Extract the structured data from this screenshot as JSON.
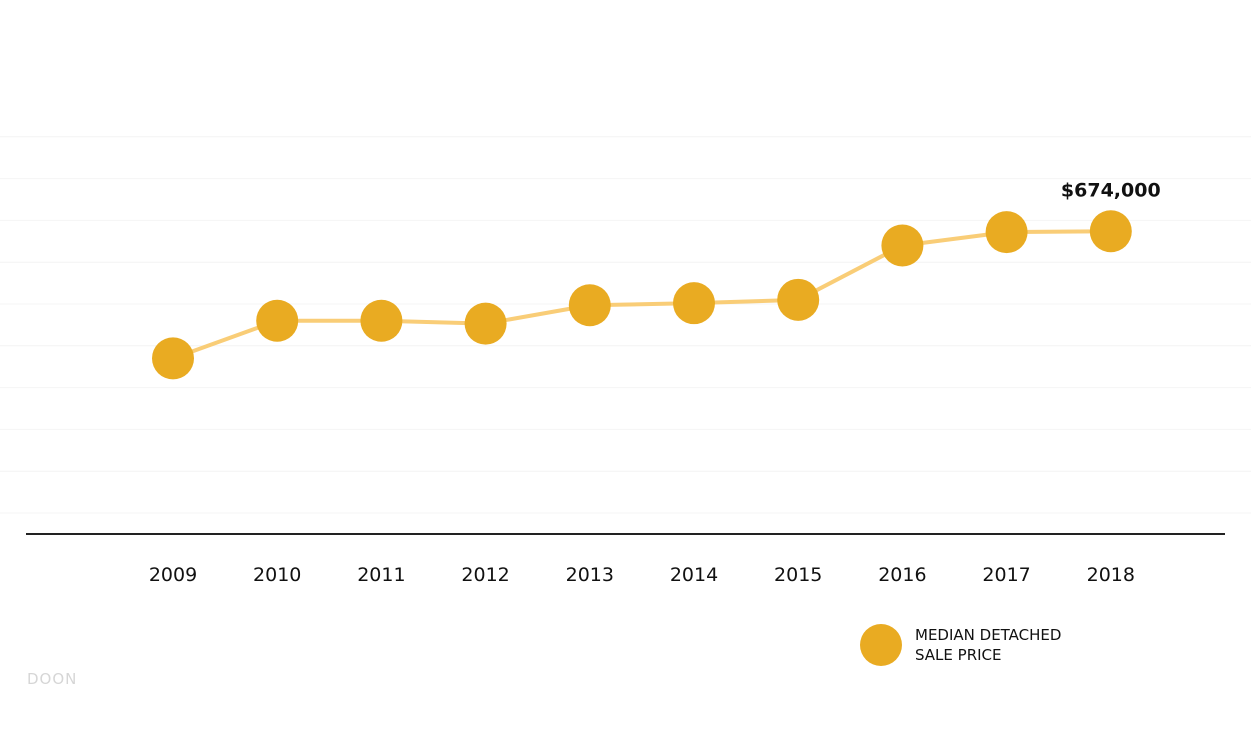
{
  "chart_data": {
    "type": "line",
    "x": [
      "2009",
      "2010",
      "2011",
      "2012",
      "2013",
      "2014",
      "2015",
      "2016",
      "2017",
      "2018"
    ],
    "series": [
      {
        "name": "MEDIAN DETACHED SALE PRICE",
        "values": [
          370000,
          460000,
          460000,
          453000,
          497000,
          502000,
          510000,
          640000,
          672000,
          674000
        ]
      }
    ],
    "annotations": [
      {
        "x": "2018",
        "text": "$674,000"
      }
    ],
    "ylim": [
      0,
      1000000
    ],
    "grid": true,
    "legend": "bottom-right",
    "colors": {
      "line": "#f9cd77",
      "marker": "#e9ab22",
      "grid": "#f4f4f4",
      "axis": "#222222"
    }
  },
  "legend": {
    "line1": "MEDIAN DETACHED",
    "line2": "SALE PRICE"
  },
  "watermark": "DOON"
}
